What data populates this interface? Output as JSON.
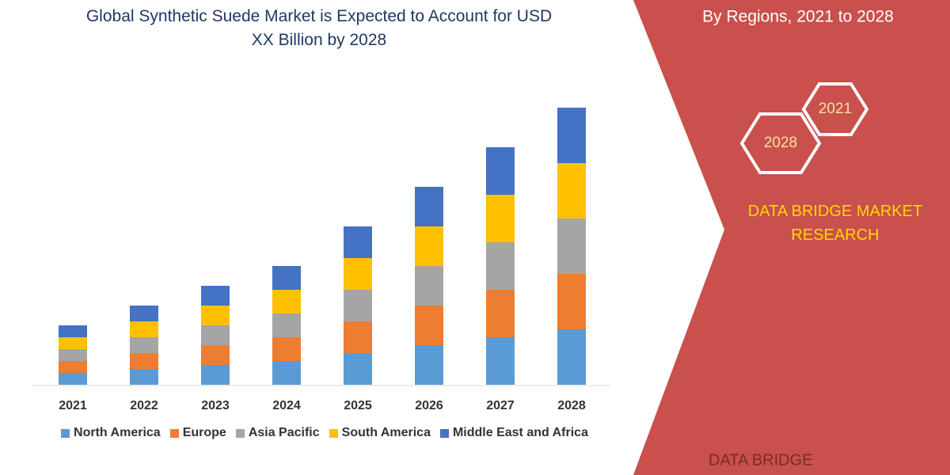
{
  "chart_data": {
    "type": "stacked-bar",
    "title": "Global Synthetic Suede Market is Expected to Account for USD XX Billion by 2028",
    "categories": [
      "2021",
      "2022",
      "2023",
      "2024",
      "2025",
      "2026",
      "2027",
      "2028"
    ],
    "series": [
      {
        "name": "North America",
        "color": "#5b9bd5",
        "values": [
          15,
          20,
          25,
          30,
          40,
          50,
          60,
          70
        ]
      },
      {
        "name": "Europe",
        "color": "#ed7d31",
        "values": [
          15,
          20,
          25,
          30,
          40,
          50,
          60,
          70
        ]
      },
      {
        "name": "Asia Pacific",
        "color": "#a5a5a5",
        "values": [
          15,
          20,
          25,
          30,
          40,
          50,
          60,
          70
        ]
      },
      {
        "name": "South America",
        "color": "#ffc000",
        "values": [
          15,
          20,
          25,
          30,
          40,
          50,
          60,
          70
        ]
      },
      {
        "name": "Middle East and Africa",
        "color": "#4472c4",
        "values": [
          15,
          20,
          25,
          30,
          40,
          50,
          60,
          70
        ]
      }
    ],
    "ylim": [
      0,
      350
    ]
  },
  "panel": {
    "subtitle": "By Regions, 2021 to 2028",
    "hex_years": [
      "2021",
      "2028"
    ],
    "brand": "DATA BRIDGE MARKET RESEARCH",
    "logo": "DATA BRIDGE"
  }
}
